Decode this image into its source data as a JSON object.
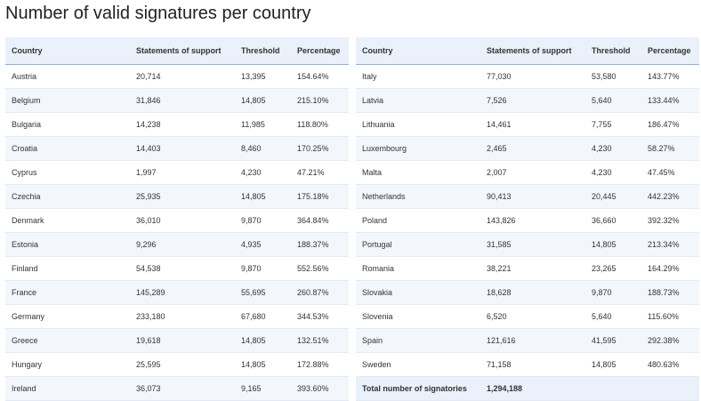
{
  "title": "Number of valid signatures per country",
  "headers": {
    "country": "Country",
    "statements": "Statements of support",
    "threshold": "Threshold",
    "percentage": "Percentage"
  },
  "left_rows": [
    {
      "country": "Austria",
      "statements": "20,714",
      "threshold": "13,395",
      "percentage": "154.64%"
    },
    {
      "country": "Belgium",
      "statements": "31,846",
      "threshold": "14,805",
      "percentage": "215.10%"
    },
    {
      "country": "Bulgaria",
      "statements": "14,238",
      "threshold": "11,985",
      "percentage": "118.80%"
    },
    {
      "country": "Croatia",
      "statements": "14,403",
      "threshold": "8,460",
      "percentage": "170.25%"
    },
    {
      "country": "Cyprus",
      "statements": "1,997",
      "threshold": "4,230",
      "percentage": "47.21%"
    },
    {
      "country": "Czechia",
      "statements": "25,935",
      "threshold": "14,805",
      "percentage": "175.18%"
    },
    {
      "country": "Denmark",
      "statements": "36,010",
      "threshold": "9,870",
      "percentage": "364.84%"
    },
    {
      "country": "Estonia",
      "statements": "9,296",
      "threshold": "4,935",
      "percentage": "188.37%"
    },
    {
      "country": "Finland",
      "statements": "54,538",
      "threshold": "9,870",
      "percentage": "552.56%"
    },
    {
      "country": "France",
      "statements": "145,289",
      "threshold": "55,695",
      "percentage": "260.87%"
    },
    {
      "country": "Germany",
      "statements": "233,180",
      "threshold": "67,680",
      "percentage": "344.53%"
    },
    {
      "country": "Greece",
      "statements": "19,618",
      "threshold": "14,805",
      "percentage": "132.51%"
    },
    {
      "country": "Hungary",
      "statements": "25,595",
      "threshold": "14,805",
      "percentage": "172.88%"
    },
    {
      "country": "Ireland",
      "statements": "36,073",
      "threshold": "9,165",
      "percentage": "393.60%"
    }
  ],
  "right_rows": [
    {
      "country": "Italy",
      "statements": "77,030",
      "threshold": "53,580",
      "percentage": "143.77%"
    },
    {
      "country": "Latvia",
      "statements": "7,526",
      "threshold": "5,640",
      "percentage": "133.44%"
    },
    {
      "country": "Lithuania",
      "statements": "14,461",
      "threshold": "7,755",
      "percentage": "186.47%"
    },
    {
      "country": "Luxembourg",
      "statements": "2,465",
      "threshold": "4,230",
      "percentage": "58.27%"
    },
    {
      "country": "Malta",
      "statements": "2,007",
      "threshold": "4,230",
      "percentage": "47.45%"
    },
    {
      "country": "Netherlands",
      "statements": "90,413",
      "threshold": "20,445",
      "percentage": "442.23%"
    },
    {
      "country": "Poland",
      "statements": "143,826",
      "threshold": "36,660",
      "percentage": "392.32%"
    },
    {
      "country": "Portugal",
      "statements": "31,585",
      "threshold": "14,805",
      "percentage": "213.34%"
    },
    {
      "country": "Romania",
      "statements": "38,221",
      "threshold": "23,265",
      "percentage": "164.29%"
    },
    {
      "country": "Slovakia",
      "statements": "18,628",
      "threshold": "9,870",
      "percentage": "188.73%"
    },
    {
      "country": "Slovenia",
      "statements": "6,520",
      "threshold": "5,640",
      "percentage": "115.60%"
    },
    {
      "country": "Spain",
      "statements": "121,616",
      "threshold": "41,595",
      "percentage": "292.38%"
    },
    {
      "country": "Sweden",
      "statements": "71,158",
      "threshold": "14,805",
      "percentage": "480.63%"
    }
  ],
  "total": {
    "label": "Total number of signatories",
    "value": "1,294,188"
  }
}
